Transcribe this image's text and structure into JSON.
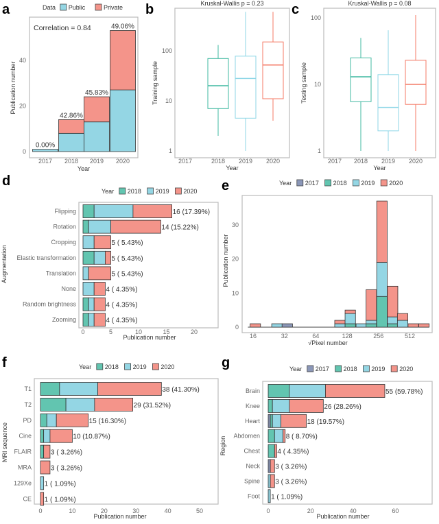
{
  "chart_data": [
    {
      "panel": "a",
      "type": "bar",
      "stacked": true,
      "categories": [
        "2017",
        "2018",
        "2019",
        "2020"
      ],
      "series": [
        {
          "name": "Public",
          "color": "#94d6e4",
          "values": [
            1,
            8,
            13,
            27
          ]
        },
        {
          "name": "Private",
          "color": "#f4948a",
          "values": [
            0,
            6,
            11,
            26
          ]
        }
      ],
      "labels": [
        "0.00%",
        "42.86%",
        "45.83%",
        "49.06%"
      ],
      "annotation": "Correlation = 0.84",
      "legend_title": "Data",
      "xlabel": "Year",
      "ylabel": "Publication number",
      "yticks": [
        0,
        20,
        40
      ],
      "ylim": [
        0,
        55
      ]
    },
    {
      "panel": "b",
      "type": "box",
      "title": "Kruskal-Wallis p = 0.23",
      "categories": [
        "2017",
        "2018",
        "2019",
        "2020"
      ],
      "boxes": [
        {
          "category": "2018",
          "color": "#3fb8a0",
          "min": 2,
          "q1": 7,
          "median": 20,
          "q3": 70,
          "max": 130
        },
        {
          "category": "2019",
          "color": "#8dd6e6",
          "min": 1,
          "q1": 4.5,
          "median": 28,
          "q3": 78,
          "max": 600
        },
        {
          "category": "2020",
          "color": "#f47a66",
          "min": 4,
          "q1": 11,
          "median": 52,
          "q3": 150,
          "max": 600
        }
      ],
      "xlabel": "Year",
      "ylabel": "Training sample",
      "yscale": "log",
      "yticks": [
        1,
        10,
        100
      ]
    },
    {
      "panel": "c",
      "type": "box",
      "title": "Kruskal-Wallis p = 0.08",
      "categories": [
        "2017",
        "2018",
        "2019",
        "2020"
      ],
      "boxes": [
        {
          "category": "2018",
          "color": "#3fb8a0",
          "min": 1,
          "q1": 5.5,
          "median": 13,
          "q3": 25,
          "max": 50
        },
        {
          "category": "2019",
          "color": "#8dd6e6",
          "min": 1,
          "q1": 2,
          "median": 4.5,
          "q3": 14,
          "max": 65
        },
        {
          "category": "2020",
          "color": "#f47a66",
          "min": 1,
          "q1": 5,
          "median": 10,
          "q3": 23,
          "max": 110
        }
      ],
      "xlabel": "Year",
      "ylabel": "Testing sample",
      "yscale": "log",
      "yticks": [
        1,
        10,
        100
      ]
    },
    {
      "panel": "d",
      "type": "bar",
      "orientation": "horizontal",
      "stacked": true,
      "categories": [
        "Flipping",
        "Rotation",
        "Cropping",
        "Elastic transformation",
        "Translation",
        "None",
        "Random brightness",
        "Zooming"
      ],
      "series": [
        {
          "name": "2018",
          "color": "#62c5b0",
          "values": [
            2,
            1,
            0,
            2,
            0,
            0,
            1,
            1
          ]
        },
        {
          "name": "2019",
          "color": "#94d6e4",
          "values": [
            7,
            4,
            2,
            2,
            1,
            2,
            1,
            1
          ]
        },
        {
          "name": "2020",
          "color": "#f4948a",
          "values": [
            7,
            9,
            3,
            1,
            4,
            2,
            2,
            2
          ]
        }
      ],
      "labels": [
        "16 (17.39%)",
        "14 (15.22%)",
        "5 ( 5.43%)",
        "5 ( 5.43%)",
        "5 ( 5.43%)",
        "4 ( 4.35%)",
        "4 ( 4.35%)",
        "4 ( 4.35%)"
      ],
      "legend_title": "Year",
      "xlabel": "Publication number",
      "ylabel": "Augmentation",
      "xticks": [
        0,
        5,
        10,
        15,
        20
      ],
      "xlim": [
        0,
        24
      ]
    },
    {
      "panel": "e",
      "type": "bar",
      "histogram": true,
      "stacked": true,
      "x_scale": "log2",
      "bin_width_log2": 0.333,
      "bin_centers_log2": [
        4.07,
        4.76,
        5.09,
        6.77,
        7.1,
        7.45,
        7.77,
        8.11,
        8.45,
        8.77,
        9.11,
        9.45
      ],
      "series": [
        {
          "name": "2017",
          "color": "#8b97b8",
          "values": [
            0,
            0,
            1,
            0,
            0,
            0,
            0,
            0,
            0,
            0,
            0,
            0
          ]
        },
        {
          "name": "2018",
          "color": "#62c5b0",
          "values": [
            0,
            0,
            0,
            0,
            1,
            0,
            1,
            9,
            1,
            0,
            0,
            0
          ]
        },
        {
          "name": "2019",
          "color": "#94d6e4",
          "values": [
            0,
            1,
            0,
            1,
            3,
            1,
            1,
            10,
            2,
            2,
            0,
            0
          ]
        },
        {
          "name": "2020",
          "color": "#f4948a",
          "values": [
            1,
            0,
            0,
            1,
            1,
            0,
            9,
            18,
            9,
            2,
            1,
            1
          ]
        }
      ],
      "legend_title": "Year",
      "xlabel": "√Pixel number",
      "ylabel": "Publication number",
      "xticks": [
        "16",
        "32",
        "64",
        "128",
        "256",
        "512"
      ],
      "yticks": [
        0,
        10,
        20,
        30
      ],
      "ylim": [
        0,
        38
      ]
    },
    {
      "panel": "f",
      "type": "bar",
      "orientation": "horizontal",
      "stacked": true,
      "categories": [
        "T1",
        "T2",
        "PD",
        "Cine",
        "FLAIR",
        "MRA",
        "129Xe",
        "CE"
      ],
      "series": [
        {
          "name": "2018",
          "color": "#62c5b0",
          "values": [
            6,
            8,
            2,
            1,
            1,
            0,
            0,
            0
          ]
        },
        {
          "name": "2019",
          "color": "#94d6e4",
          "values": [
            12,
            9,
            3,
            2,
            0,
            0,
            1,
            0
          ]
        },
        {
          "name": "2020",
          "color": "#f4948a",
          "values": [
            20,
            12,
            10,
            7,
            2,
            3,
            0,
            1
          ]
        }
      ],
      "labels": [
        "38 (41.30%)",
        "29 (31.52%)",
        "15 (16.30%)",
        "10 (10.87%)",
        "3 ( 3.26%)",
        "3 ( 3.26%)",
        "1 ( 1.09%)",
        "1 ( 1.09%)"
      ],
      "legend_title": "Year",
      "xlabel": "Publication number",
      "ylabel": "MRI sequence",
      "xticks": [
        0,
        10,
        20,
        30,
        40,
        50
      ],
      "xlim": [
        0,
        55
      ]
    },
    {
      "panel": "g",
      "type": "bar",
      "orientation": "horizontal",
      "stacked": true,
      "categories": [
        "Brain",
        "Knee",
        "Heart",
        "Abdomen",
        "Chest",
        "Neck",
        "Spine",
        "Foot"
      ],
      "series": [
        {
          "name": "2017",
          "color": "#8b97b8",
          "values": [
            0,
            0,
            1,
            0,
            0,
            1,
            0,
            0
          ]
        },
        {
          "name": "2018",
          "color": "#62c5b0",
          "values": [
            10,
            2,
            1,
            3,
            3,
            0,
            0,
            0
          ]
        },
        {
          "name": "2019",
          "color": "#94d6e4",
          "values": [
            17,
            8,
            4,
            4,
            0,
            0,
            1,
            1
          ]
        },
        {
          "name": "2020",
          "color": "#f4948a",
          "values": [
            28,
            16,
            12,
            1,
            1,
            2,
            2,
            0
          ]
        }
      ],
      "labels": [
        "55 (59.78%)",
        "26 (28.26%)",
        "18 (19.57%)",
        "8 ( 8.70%)",
        "4 ( 4.35%)",
        "3 ( 3.26%)",
        "3 ( 3.26%)",
        "1 ( 1.09%)"
      ],
      "legend_title": "Year",
      "xlabel": "Publication number",
      "ylabel": "Region",
      "xticks": [
        0,
        20,
        40,
        60
      ],
      "xlim": [
        0,
        75
      ]
    }
  ]
}
